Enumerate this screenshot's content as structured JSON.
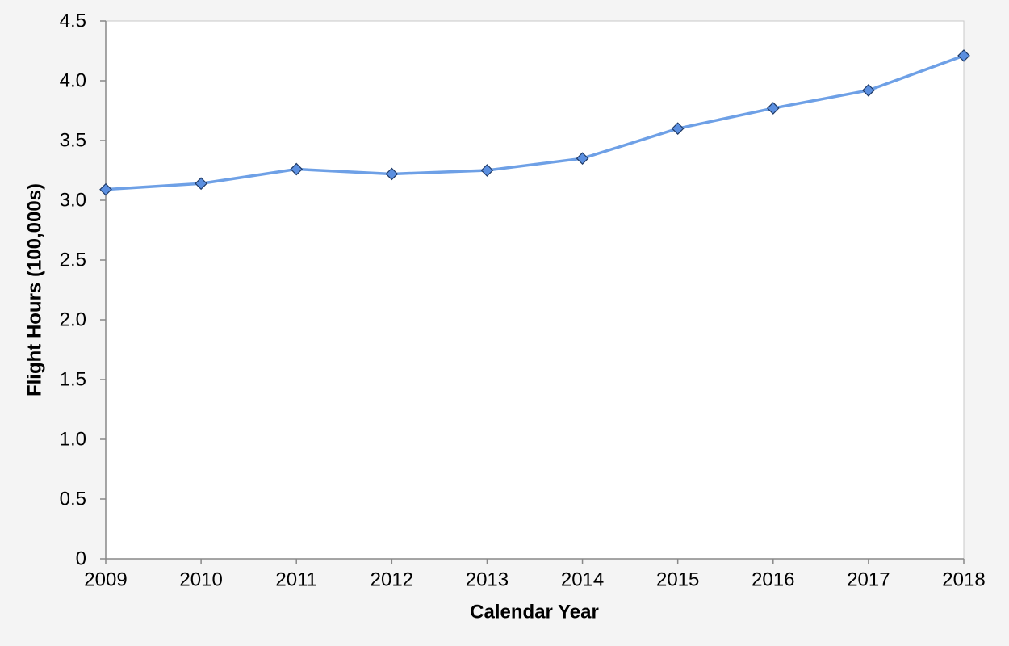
{
  "chart_data": {
    "type": "line",
    "x_label": "Calendar Year",
    "y_label": "Flight Hours (100,000s)",
    "x": [
      2009,
      2010,
      2011,
      2012,
      2013,
      2014,
      2015,
      2016,
      2017,
      2018
    ],
    "values": [
      3.09,
      3.14,
      3.26,
      3.22,
      3.25,
      3.35,
      3.6,
      3.77,
      3.92,
      4.21
    ],
    "color": "#6ea0e6",
    "marker_color": "#5b8fe0",
    "xlim": [
      2009,
      2018
    ],
    "xticks": [
      2009,
      2010,
      2011,
      2012,
      2013,
      2014,
      2015,
      2016,
      2017,
      2018
    ],
    "ylim": [
      0,
      4.5
    ],
    "yticks": [
      0,
      0.5,
      {
        "value": 1,
        "label": "1.0"
      },
      1.5,
      {
        "value": 2,
        "label": "2.0"
      },
      2.5,
      {
        "value": 3,
        "label": "3.0"
      },
      3.5,
      {
        "value": 4,
        "label": "4.0"
      },
      4.5
    ],
    "grid": false
  }
}
